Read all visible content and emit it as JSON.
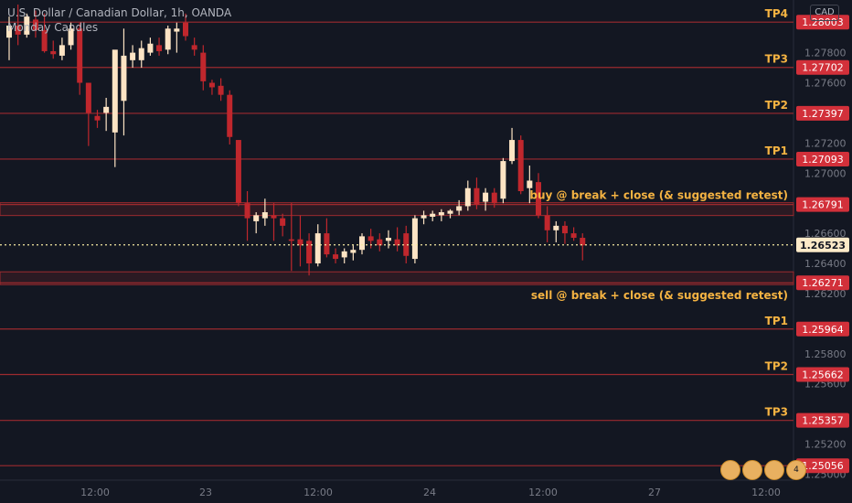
{
  "header": {
    "symbol_line": "U.S. Dollar / Canadian Dollar, 1h, OANDA",
    "indicator": "Monday Candles"
  },
  "currency_badge": "CAD",
  "colors": {
    "background": "#131722",
    "bull_body": "#fde4c4",
    "bear_body": "#c0272d",
    "wick_bull": "#fde4c4",
    "wick_bear": "#c0272d",
    "level_line": "#9c2a2f",
    "label_text": "#f5b342",
    "price_tag_bg": "#d2303a",
    "current_tag_bg": "#fdeac8",
    "current_line": "#f5e9a0",
    "axis_text": "#787b86"
  },
  "annotations": {
    "buy": "buy @ break + close (& suggested retest)",
    "sell": "sell @ break + close (& suggested retest)"
  },
  "event_badges": [
    "",
    "",
    "",
    "4"
  ],
  "chart_data": {
    "type": "candlestick",
    "title": "U.S. Dollar / Canadian Dollar, 1h, OANDA",
    "x_ticks": [
      "12:00",
      "23",
      "12:00",
      "24",
      "12:00",
      "27",
      "12:00"
    ],
    "y_ticks": [
      "1.27800",
      "1.27600",
      "1.27200",
      "1.27000",
      "1.26600",
      "1.26400",
      "1.26200",
      "1.25800",
      "1.25600",
      "1.25200",
      "1.25000"
    ],
    "ylim": [
      1.2496,
      1.2815
    ],
    "current_price": 1.26523,
    "current_price_label": "1.26523",
    "levels": [
      {
        "label": "TP4",
        "price": 1.28003,
        "price_label": "1.28003"
      },
      {
        "label": "TP3",
        "price": 1.27702,
        "price_label": "1.27702"
      },
      {
        "label": "TP2",
        "price": 1.27397,
        "price_label": "1.27397"
      },
      {
        "label": "TP1",
        "price": 1.27093,
        "price_label": "1.27093"
      },
      {
        "label": "",
        "price": 1.26791,
        "price_label": "1.26791"
      },
      {
        "label": "",
        "price": 1.26271,
        "price_label": "1.26271"
      },
      {
        "label": "TP1",
        "price": 1.25964,
        "price_label": "1.25964"
      },
      {
        "label": "TP2",
        "price": 1.25662,
        "price_label": "1.25662"
      },
      {
        "label": "TP3",
        "price": 1.25357,
        "price_label": "1.25357"
      },
      {
        "label": "",
        "price": 1.25056,
        "price_label": "1.25056"
      }
    ],
    "candles": [
      {
        "o": 1.279,
        "h": 1.2804,
        "l": 1.2775,
        "c": 1.2798
      },
      {
        "o": 1.2798,
        "h": 1.2812,
        "l": 1.2785,
        "c": 1.2792
      },
      {
        "o": 1.2792,
        "h": 1.2806,
        "l": 1.279,
        "c": 1.2804
      },
      {
        "o": 1.2802,
        "h": 1.2808,
        "l": 1.279,
        "c": 1.2795
      },
      {
        "o": 1.2795,
        "h": 1.2806,
        "l": 1.278,
        "c": 1.2781
      },
      {
        "o": 1.2781,
        "h": 1.2788,
        "l": 1.2776,
        "c": 1.2779
      },
      {
        "o": 1.2778,
        "h": 1.279,
        "l": 1.2775,
        "c": 1.2785
      },
      {
        "o": 1.2785,
        "h": 1.28,
        "l": 1.2782,
        "c": 1.2796
      },
      {
        "o": 1.2796,
        "h": 1.28,
        "l": 1.2752,
        "c": 1.276
      },
      {
        "o": 1.276,
        "h": 1.276,
        "l": 1.2718,
        "c": 1.274
      },
      {
        "o": 1.2738,
        "h": 1.2742,
        "l": 1.273,
        "c": 1.2735
      },
      {
        "o": 1.274,
        "h": 1.275,
        "l": 1.2728,
        "c": 1.2744
      },
      {
        "o": 1.2727,
        "h": 1.278,
        "l": 1.2704,
        "c": 1.2782
      },
      {
        "o": 1.2748,
        "h": 1.2796,
        "l": 1.2725,
        "c": 1.2778
      },
      {
        "o": 1.2775,
        "h": 1.2785,
        "l": 1.277,
        "c": 1.278
      },
      {
        "o": 1.2775,
        "h": 1.2788,
        "l": 1.277,
        "c": 1.2783
      },
      {
        "o": 1.278,
        "h": 1.279,
        "l": 1.2778,
        "c": 1.2786
      },
      {
        "o": 1.2785,
        "h": 1.279,
        "l": 1.2778,
        "c": 1.2781
      },
      {
        "o": 1.2782,
        "h": 1.2798,
        "l": 1.2779,
        "c": 1.2796
      },
      {
        "o": 1.2794,
        "h": 1.28,
        "l": 1.278,
        "c": 1.2796
      },
      {
        "o": 1.28,
        "h": 1.2806,
        "l": 1.2788,
        "c": 1.2791
      },
      {
        "o": 1.2785,
        "h": 1.279,
        "l": 1.2778,
        "c": 1.2782
      },
      {
        "o": 1.278,
        "h": 1.2785,
        "l": 1.2755,
        "c": 1.2761
      },
      {
        "o": 1.276,
        "h": 1.2762,
        "l": 1.2752,
        "c": 1.2757
      },
      {
        "o": 1.2758,
        "h": 1.2763,
        "l": 1.2748,
        "c": 1.2752
      },
      {
        "o": 1.2752,
        "h": 1.2755,
        "l": 1.2719,
        "c": 1.2724
      },
      {
        "o": 1.2722,
        "h": 1.2722,
        "l": 1.2678,
        "c": 1.268
      },
      {
        "o": 1.268,
        "h": 1.2688,
        "l": 1.2655,
        "c": 1.267
      },
      {
        "o": 1.2668,
        "h": 1.2674,
        "l": 1.266,
        "c": 1.2672
      },
      {
        "o": 1.267,
        "h": 1.2683,
        "l": 1.2665,
        "c": 1.2674
      },
      {
        "o": 1.2672,
        "h": 1.268,
        "l": 1.2655,
        "c": 1.267
      },
      {
        "o": 1.267,
        "h": 1.2673,
        "l": 1.2658,
        "c": 1.2665
      },
      {
        "o": 1.2656,
        "h": 1.268,
        "l": 1.2635,
        "c": 1.2655
      },
      {
        "o": 1.2656,
        "h": 1.2672,
        "l": 1.2638,
        "c": 1.2652
      },
      {
        "o": 1.2655,
        "h": 1.266,
        "l": 1.2632,
        "c": 1.264
      },
      {
        "o": 1.264,
        "h": 1.2666,
        "l": 1.2638,
        "c": 1.266
      },
      {
        "o": 1.266,
        "h": 1.267,
        "l": 1.2644,
        "c": 1.2646
      },
      {
        "o": 1.2646,
        "h": 1.265,
        "l": 1.264,
        "c": 1.2643
      },
      {
        "o": 1.2644,
        "h": 1.265,
        "l": 1.264,
        "c": 1.2648
      },
      {
        "o": 1.2647,
        "h": 1.2652,
        "l": 1.2642,
        "c": 1.2649
      },
      {
        "o": 1.2649,
        "h": 1.266,
        "l": 1.2646,
        "c": 1.2658
      },
      {
        "o": 1.2658,
        "h": 1.2663,
        "l": 1.265,
        "c": 1.2655
      },
      {
        "o": 1.2656,
        "h": 1.266,
        "l": 1.2648,
        "c": 1.2652
      },
      {
        "o": 1.2655,
        "h": 1.2662,
        "l": 1.265,
        "c": 1.2657
      },
      {
        "o": 1.2656,
        "h": 1.2664,
        "l": 1.2648,
        "c": 1.2652
      },
      {
        "o": 1.266,
        "h": 1.2665,
        "l": 1.264,
        "c": 1.2645
      },
      {
        "o": 1.2643,
        "h": 1.2672,
        "l": 1.264,
        "c": 1.267
      },
      {
        "o": 1.267,
        "h": 1.2675,
        "l": 1.2666,
        "c": 1.2672
      },
      {
        "o": 1.2671,
        "h": 1.2675,
        "l": 1.2668,
        "c": 1.2673
      },
      {
        "o": 1.2672,
        "h": 1.2676,
        "l": 1.2668,
        "c": 1.2674
      },
      {
        "o": 1.2673,
        "h": 1.2676,
        "l": 1.267,
        "c": 1.2675
      },
      {
        "o": 1.2675,
        "h": 1.2682,
        "l": 1.2672,
        "c": 1.2678
      },
      {
        "o": 1.2678,
        "h": 1.2695,
        "l": 1.2675,
        "c": 1.269
      },
      {
        "o": 1.269,
        "h": 1.2697,
        "l": 1.2676,
        "c": 1.2679
      },
      {
        "o": 1.2681,
        "h": 1.269,
        "l": 1.2675,
        "c": 1.2687
      },
      {
        "o": 1.2687,
        "h": 1.269,
        "l": 1.2677,
        "c": 1.268
      },
      {
        "o": 1.2683,
        "h": 1.271,
        "l": 1.268,
        "c": 1.2708
      },
      {
        "o": 1.2708,
        "h": 1.273,
        "l": 1.2706,
        "c": 1.2722
      },
      {
        "o": 1.2722,
        "h": 1.2725,
        "l": 1.2686,
        "c": 1.2688
      },
      {
        "o": 1.269,
        "h": 1.2705,
        "l": 1.268,
        "c": 1.2695
      },
      {
        "o": 1.2694,
        "h": 1.27,
        "l": 1.267,
        "c": 1.2672
      },
      {
        "o": 1.2672,
        "h": 1.2678,
        "l": 1.2654,
        "c": 1.2662
      },
      {
        "o": 1.2662,
        "h": 1.2668,
        "l": 1.2654,
        "c": 1.2665
      },
      {
        "o": 1.2665,
        "h": 1.2668,
        "l": 1.2653,
        "c": 1.266
      },
      {
        "o": 1.266,
        "h": 1.2664,
        "l": 1.2655,
        "c": 1.2657
      },
      {
        "o": 1.2657,
        "h": 1.266,
        "l": 1.2642,
        "c": 1.2652
      }
    ]
  }
}
